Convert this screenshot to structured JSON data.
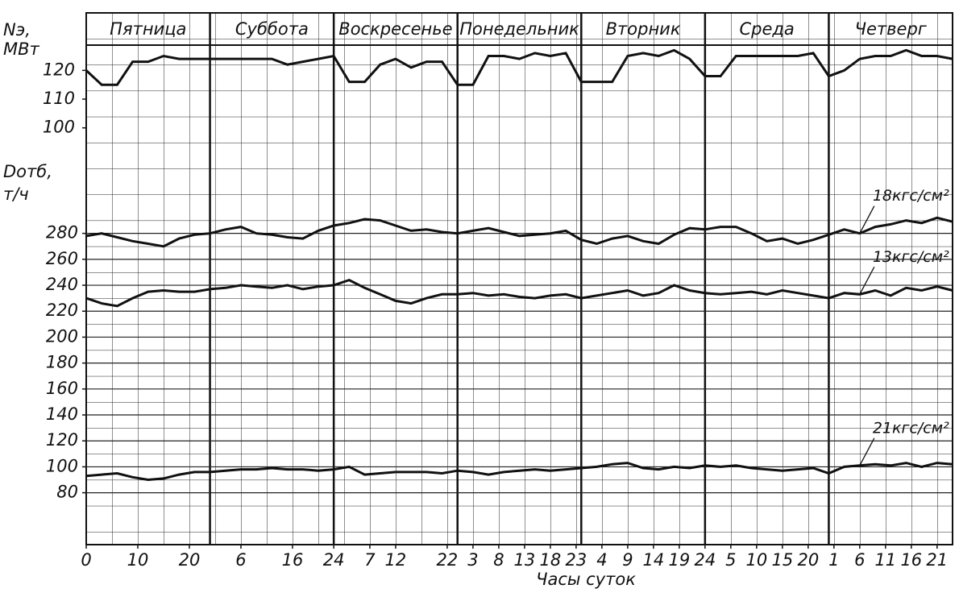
{
  "chart_data": {
    "type": "line",
    "days": [
      "Пятница",
      "Суббота",
      "Воскресенье",
      "Понедельник",
      "Вторник",
      "Среда",
      "Четверг"
    ],
    "xlabel": "Часы суток",
    "ylabel": [
      "Dотб,",
      "т/ч"
    ],
    "y2label": [
      "Nэ,",
      "МВт"
    ],
    "x": [
      0,
      3,
      6,
      9,
      12,
      15,
      18,
      21,
      24,
      27,
      30,
      33,
      36,
      39,
      42,
      45,
      48,
      51,
      54,
      57,
      60,
      63,
      66,
      69,
      72,
      75,
      78,
      81,
      84,
      87,
      90,
      93,
      96,
      99,
      102,
      105,
      108,
      111,
      114,
      117,
      120,
      123,
      126,
      129,
      132,
      135,
      138,
      141,
      144,
      147,
      150,
      153,
      156,
      159,
      162,
      165,
      168
    ],
    "xlim": [
      0,
      168
    ],
    "xticks": [
      0,
      10,
      20,
      {
        "value": 30,
        "label": "6"
      },
      {
        "value": 40,
        "label": "16"
      },
      {
        "value": 48,
        "label": "24"
      },
      {
        "value": 55,
        "label": "7"
      },
      {
        "value": 60,
        "label": "12"
      },
      {
        "value": 70,
        "label": "22"
      },
      {
        "value": 75,
        "label": "3"
      },
      {
        "value": 80,
        "label": "8"
      },
      {
        "value": 85,
        "label": "13"
      },
      {
        "value": 90,
        "label": "18"
      },
      {
        "value": 95,
        "label": "23"
      },
      {
        "value": 100,
        "label": "4"
      },
      {
        "value": 105,
        "label": "9"
      },
      {
        "value": 110,
        "label": "14"
      },
      {
        "value": 115,
        "label": "19"
      },
      {
        "value": 120,
        "label": "24"
      },
      {
        "value": 125,
        "label": "5"
      },
      {
        "value": 130,
        "label": "10"
      },
      {
        "value": 135,
        "label": "15"
      },
      {
        "value": 140,
        "label": "20"
      },
      {
        "value": 145,
        "label": "1"
      },
      {
        "value": 150,
        "label": "6"
      },
      {
        "value": 155,
        "label": "11"
      },
      {
        "value": 160,
        "label": "16"
      },
      {
        "value": 165,
        "label": "21"
      }
    ],
    "ylim": [
      40,
      450
    ],
    "yticks": [
      80,
      100,
      120,
      140,
      160,
      180,
      200,
      220,
      240,
      260,
      280
    ],
    "y2lim": [
      -45,
      140
    ],
    "y2ticks": [
      100,
      110,
      120
    ],
    "grid": true,
    "series": [
      {
        "color": "#111111",
        "axis": "y2",
        "values": [
          120,
          115,
          115,
          123,
          123,
          125,
          124,
          124,
          124,
          124,
          124,
          124,
          124,
          122,
          123,
          124,
          125,
          116,
          116,
          122,
          124,
          121,
          123,
          123,
          115,
          115,
          125,
          125,
          124,
          126,
          125,
          126,
          116,
          116,
          116,
          125,
          126,
          125,
          127,
          124,
          118,
          118,
          125,
          125,
          125,
          125,
          125,
          126,
          118,
          120,
          124,
          125,
          125,
          127,
          125,
          125,
          124
        ]
      },
      {
        "name": "18кгс/см²",
        "color": "#111111",
        "values": [
          278,
          280,
          277,
          274,
          272,
          270,
          276,
          279,
          280,
          283,
          285,
          280,
          279,
          277,
          276,
          282,
          286,
          288,
          291,
          290,
          286,
          282,
          283,
          281,
          280,
          282,
          284,
          281,
          278,
          279,
          280,
          282,
          275,
          272,
          276,
          278,
          274,
          272,
          279,
          284,
          283,
          285,
          285,
          280,
          274,
          276,
          272,
          275,
          279,
          283,
          280,
          285,
          287,
          290,
          288,
          292,
          289
        ]
      },
      {
        "name": "13кгс/см²",
        "color": "#111111",
        "values": [
          230,
          226,
          224,
          230,
          235,
          236,
          235,
          235,
          237,
          238,
          240,
          239,
          238,
          240,
          237,
          239,
          240,
          244,
          238,
          233,
          228,
          226,
          230,
          233,
          233,
          234,
          232,
          233,
          231,
          230,
          232,
          233,
          230,
          232,
          234,
          236,
          232,
          234,
          240,
          236,
          234,
          233,
          234,
          235,
          233,
          236,
          234,
          232,
          230,
          234,
          233,
          236,
          232,
          238,
          236,
          239,
          236
        ]
      },
      {
        "name": "21кгс/см²",
        "color": "#111111",
        "values": [
          93,
          94,
          95,
          92,
          90,
          91,
          94,
          96,
          96,
          97,
          98,
          98,
          99,
          98,
          98,
          97,
          98,
          100,
          94,
          95,
          96,
          96,
          96,
          95,
          97,
          96,
          94,
          96,
          97,
          98,
          97,
          98,
          99,
          100,
          102,
          103,
          99,
          98,
          100,
          99,
          101,
          100,
          101,
          99,
          98,
          97,
          98,
          99,
          95,
          100,
          101,
          102,
          101,
          103,
          100,
          103,
          102
        ]
      }
    ]
  }
}
